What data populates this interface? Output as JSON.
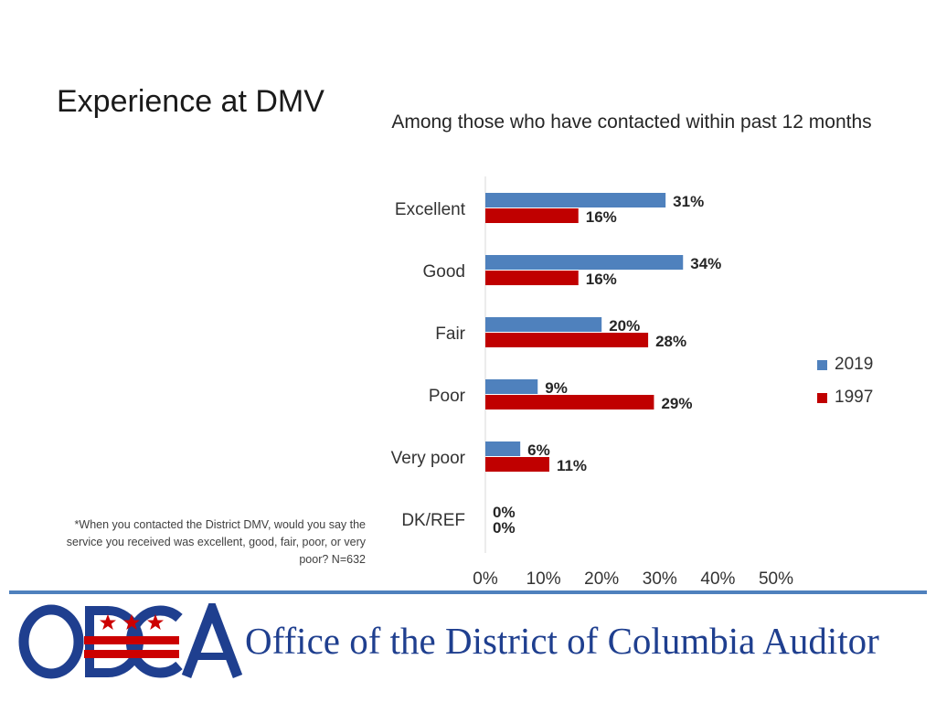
{
  "slide": {
    "title": "Experience at DMV",
    "footnote": "*When you contacted the District DMV, would you say the service you received was excellent, good, fair, poor, or very poor? N=632"
  },
  "footer": {
    "logo_text": "ODCA",
    "org_name": "Office of the District of Columbia Auditor",
    "rule_color": "#4f81bd",
    "logo_blue": "#1f3f8f",
    "logo_red": "#cc0000"
  },
  "chart_data": {
    "type": "bar",
    "orientation": "horizontal",
    "title": "Among those who have contacted within past 12 months",
    "categories": [
      "Excellent",
      "Good",
      "Fair",
      "Poor",
      "Very poor",
      "DK/REF"
    ],
    "series": [
      {
        "name": "2019",
        "values": [
          31,
          34,
          20,
          9,
          6,
          0
        ],
        "labels": [
          "31%",
          "34%",
          "20%",
          "9%",
          "6%",
          "0%"
        ],
        "color": "#4f81bd"
      },
      {
        "name": "1997",
        "values": [
          16,
          16,
          28,
          29,
          11,
          0
        ],
        "labels": [
          "16%",
          "16%",
          "28%",
          "29%",
          "11%",
          "0%"
        ],
        "color": "#c00000"
      }
    ],
    "xlim": [
      0,
      50
    ],
    "xticks": [
      "0%",
      "10%",
      "20%",
      "30%",
      "40%",
      "50%"
    ],
    "xlabel": "",
    "ylabel": "",
    "grid": false,
    "legend_position": "right"
  }
}
